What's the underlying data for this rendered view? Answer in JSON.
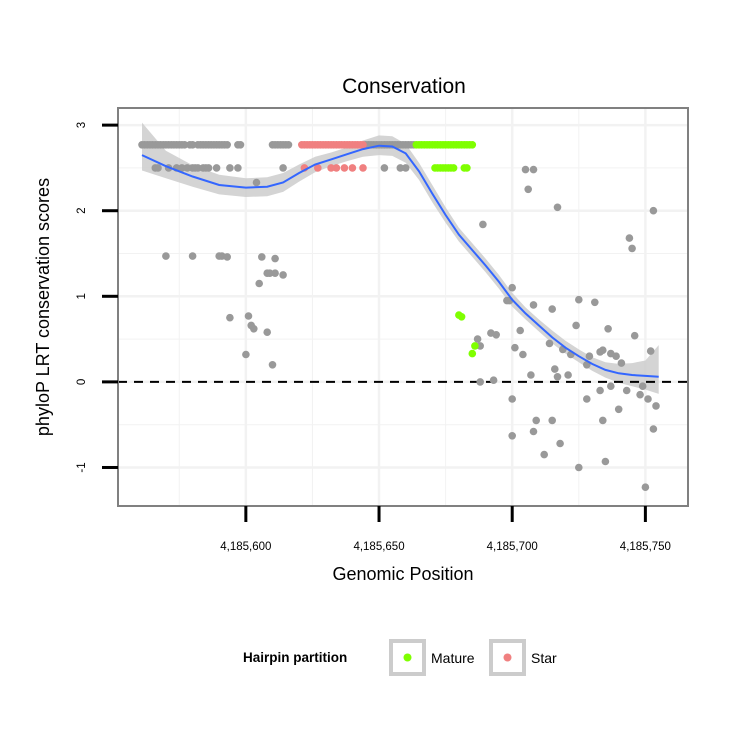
{
  "chart_data": {
    "type": "scatter",
    "title": "Conservation",
    "xlabel": "Genomic Position",
    "ylabel": "phyloP LRT conservation scores",
    "xlim": [
      4185552,
      4185766
    ],
    "ylim": [
      -1.45,
      3.2
    ],
    "x_ticks": [
      {
        "value": 4185600,
        "label": "4,185,600"
      },
      {
        "value": 4185650,
        "label": "4,185,650"
      },
      {
        "value": 4185700,
        "label": "4,185,700"
      },
      {
        "value": 4185750,
        "label": "4,185,750"
      }
    ],
    "y_ticks": [
      {
        "value": -1,
        "label": "-1"
      },
      {
        "value": 0,
        "label": "0"
      },
      {
        "value": 1,
        "label": "1"
      },
      {
        "value": 2,
        "label": "2"
      },
      {
        "value": 3,
        "label": "3"
      }
    ],
    "x_minor_grid": [
      4185575,
      4185625,
      4185675,
      4185725
    ],
    "y_minor_grid": [
      -0.5,
      0.5,
      1.5,
      2.5
    ],
    "reference_line": {
      "y": 0,
      "style": "dashed"
    },
    "colors": {
      "other": "#999999",
      "mature": "#7fff00",
      "star": "#f08080",
      "smooth": "#3366ff",
      "ribbon": "#cccccc",
      "panel_border": "#808080",
      "grid": "#f2f2f2"
    },
    "legend": {
      "title": "Hairpin partition",
      "position": "bottom",
      "entries": [
        {
          "key": "mature",
          "label": "Mature"
        },
        {
          "key": "star",
          "label": "Star"
        }
      ]
    },
    "smooth": {
      "x": [
        4185561,
        4185570,
        4185580,
        4185590,
        4185600,
        4185608,
        4185614,
        4185620,
        4185626,
        4185632,
        4185638,
        4185644,
        4185650,
        4185655,
        4185660,
        4185665,
        4185670,
        4185675,
        4185680,
        4185685,
        4185690,
        4185695,
        4185700,
        4185705,
        4185710,
        4185715,
        4185720,
        4185725,
        4185730,
        4185735,
        4185740,
        4185745,
        4185750,
        4185755
      ],
      "y": [
        2.65,
        2.52,
        2.4,
        2.3,
        2.27,
        2.28,
        2.33,
        2.44,
        2.54,
        2.6,
        2.66,
        2.72,
        2.76,
        2.75,
        2.67,
        2.46,
        2.2,
        1.95,
        1.72,
        1.54,
        1.36,
        1.17,
        0.96,
        0.8,
        0.66,
        0.52,
        0.4,
        0.3,
        0.21,
        0.14,
        0.1,
        0.08,
        0.07,
        0.06
      ],
      "lower": [
        2.47,
        2.38,
        2.28,
        2.19,
        2.16,
        2.17,
        2.22,
        2.34,
        2.45,
        2.52,
        2.58,
        2.63,
        2.65,
        2.64,
        2.56,
        2.36,
        2.1,
        1.86,
        1.64,
        1.46,
        1.28,
        1.09,
        0.88,
        0.73,
        0.59,
        0.45,
        0.33,
        0.23,
        0.13,
        0.05,
        -0.01,
        -0.05,
        -0.09,
        -0.14
      ],
      "upper": [
        3.03,
        2.7,
        2.53,
        2.42,
        2.38,
        2.39,
        2.44,
        2.54,
        2.63,
        2.68,
        2.74,
        2.82,
        2.88,
        2.87,
        2.78,
        2.56,
        2.3,
        2.04,
        1.8,
        1.62,
        1.44,
        1.25,
        1.04,
        0.87,
        0.73,
        0.6,
        0.48,
        0.38,
        0.29,
        0.23,
        0.21,
        0.22,
        0.25,
        0.43
      ]
    },
    "series": [
      {
        "name": "other",
        "points": [
          [
            4185561,
            2.77
          ],
          [
            4185562,
            2.77
          ],
          [
            4185563,
            2.77
          ],
          [
            4185564,
            2.77
          ],
          [
            4185565,
            2.77
          ],
          [
            4185566,
            2.77
          ],
          [
            4185567,
            2.77
          ],
          [
            4185568,
            2.77
          ],
          [
            4185569,
            2.77
          ],
          [
            4185570,
            2.77
          ],
          [
            4185571,
            2.77
          ],
          [
            4185572,
            2.77
          ],
          [
            4185573,
            2.77
          ],
          [
            4185574,
            2.77
          ],
          [
            4185575,
            2.77
          ],
          [
            4185576,
            2.77
          ],
          [
            4185577,
            2.77
          ],
          [
            4185579,
            2.77
          ],
          [
            4185580,
            2.77
          ],
          [
            4185582,
            2.77
          ],
          [
            4185583,
            2.77
          ],
          [
            4185584,
            2.77
          ],
          [
            4185585,
            2.77
          ],
          [
            4185586,
            2.77
          ],
          [
            4185587,
            2.77
          ],
          [
            4185588,
            2.77
          ],
          [
            4185589,
            2.77
          ],
          [
            4185590,
            2.77
          ],
          [
            4185591,
            2.77
          ],
          [
            4185592,
            2.77
          ],
          [
            4185593,
            2.77
          ],
          [
            4185597,
            2.77
          ],
          [
            4185598,
            2.77
          ],
          [
            4185610,
            2.77
          ],
          [
            4185611,
            2.77
          ],
          [
            4185612,
            2.77
          ],
          [
            4185613,
            2.77
          ],
          [
            4185614,
            2.77
          ],
          [
            4185615,
            2.77
          ],
          [
            4185616,
            2.77
          ],
          [
            4185645,
            2.77
          ],
          [
            4185646,
            2.77
          ],
          [
            4185647,
            2.77
          ],
          [
            4185648,
            2.77
          ],
          [
            4185649,
            2.77
          ],
          [
            4185650,
            2.77
          ],
          [
            4185651,
            2.77
          ],
          [
            4185652,
            2.77
          ],
          [
            4185653,
            2.77
          ],
          [
            4185654,
            2.77
          ],
          [
            4185655,
            2.77
          ],
          [
            4185656,
            2.77
          ],
          [
            4185657,
            2.77
          ],
          [
            4185658,
            2.77
          ],
          [
            4185659,
            2.77
          ],
          [
            4185660,
            2.77
          ],
          [
            4185661,
            2.77
          ],
          [
            4185662,
            2.77
          ],
          [
            4185663,
            2.77
          ],
          [
            4185566,
            2.5
          ],
          [
            4185567,
            2.5
          ],
          [
            4185571,
            2.5
          ],
          [
            4185574,
            2.5
          ],
          [
            4185576,
            2.5
          ],
          [
            4185578,
            2.5
          ],
          [
            4185580,
            2.5
          ],
          [
            4185581,
            2.5
          ],
          [
            4185582,
            2.5
          ],
          [
            4185584,
            2.5
          ],
          [
            4185585,
            2.5
          ],
          [
            4185586,
            2.5
          ],
          [
            4185589,
            2.5
          ],
          [
            4185594,
            2.5
          ],
          [
            4185597,
            2.5
          ],
          [
            4185604,
            2.33
          ],
          [
            4185614,
            2.5
          ],
          [
            4185652,
            2.5
          ],
          [
            4185658,
            2.5
          ],
          [
            4185660,
            2.5
          ],
          [
            4185570,
            1.47
          ],
          [
            4185580,
            1.47
          ],
          [
            4185590,
            1.47
          ],
          [
            4185591,
            1.47
          ],
          [
            4185593,
            1.46
          ],
          [
            4185606,
            1.46
          ],
          [
            4185611,
            1.44
          ],
          [
            4185608,
            1.27
          ],
          [
            4185609,
            1.27
          ],
          [
            4185611,
            1.27
          ],
          [
            4185614,
            1.25
          ],
          [
            4185605,
            1.15
          ],
          [
            4185601,
            0.77
          ],
          [
            4185594,
            0.75
          ],
          [
            4185602,
            0.66
          ],
          [
            4185603,
            0.62
          ],
          [
            4185608,
            0.58
          ],
          [
            4185600,
            0.32
          ],
          [
            4185610,
            0.2
          ],
          [
            4185705,
            2.48
          ],
          [
            4185708,
            2.48
          ],
          [
            4185706,
            2.25
          ],
          [
            4185717,
            2.04
          ],
          [
            4185753,
            2.0
          ],
          [
            4185689,
            1.84
          ],
          [
            4185744,
            1.68
          ],
          [
            4185745,
            1.56
          ],
          [
            4185700,
            1.1
          ],
          [
            4185698,
            0.95
          ],
          [
            4185699,
            0.95
          ],
          [
            4185708,
            0.9
          ],
          [
            4185715,
            0.85
          ],
          [
            4185725,
            0.96
          ],
          [
            4185731,
            0.93
          ],
          [
            4185724,
            0.66
          ],
          [
            4185736,
            0.62
          ],
          [
            4185746,
            0.54
          ],
          [
            4185692,
            0.57
          ],
          [
            4185694,
            0.55
          ],
          [
            4185687,
            0.5
          ],
          [
            4185688,
            0.42
          ],
          [
            4185701,
            0.4
          ],
          [
            4185703,
            0.6
          ],
          [
            4185704,
            0.32
          ],
          [
            4185714,
            0.45
          ],
          [
            4185719,
            0.38
          ],
          [
            4185722,
            0.32
          ],
          [
            4185728,
            0.2
          ],
          [
            4185729,
            0.3
          ],
          [
            4185733,
            0.35
          ],
          [
            4185734,
            0.37
          ],
          [
            4185737,
            0.33
          ],
          [
            4185739,
            0.3
          ],
          [
            4185741,
            0.22
          ],
          [
            4185752,
            0.36
          ],
          [
            4185688,
            0.0
          ],
          [
            4185693,
            0.02
          ],
          [
            4185707,
            0.08
          ],
          [
            4185716,
            0.15
          ],
          [
            4185717,
            0.06
          ],
          [
            4185721,
            0.08
          ],
          [
            4185728,
            -0.2
          ],
          [
            4185733,
            -0.1
          ],
          [
            4185737,
            -0.05
          ],
          [
            4185740,
            -0.32
          ],
          [
            4185743,
            -0.1
          ],
          [
            4185748,
            -0.15
          ],
          [
            4185749,
            -0.05
          ],
          [
            4185751,
            -0.2
          ],
          [
            4185754,
            -0.28
          ],
          [
            4185700,
            -0.2
          ],
          [
            4185709,
            -0.45
          ],
          [
            4185715,
            -0.45
          ],
          [
            4185734,
            -0.45
          ],
          [
            4185700,
            -0.63
          ],
          [
            4185708,
            -0.58
          ],
          [
            4185718,
            -0.72
          ],
          [
            4185753,
            -0.55
          ],
          [
            4185712,
            -0.85
          ],
          [
            4185735,
            -0.93
          ],
          [
            4185725,
            -1.0
          ],
          [
            4185750,
            -1.23
          ]
        ]
      },
      {
        "name": "star",
        "points": [
          [
            4185621,
            2.77
          ],
          [
            4185622,
            2.77
          ],
          [
            4185623,
            2.77
          ],
          [
            4185624,
            2.77
          ],
          [
            4185625,
            2.77
          ],
          [
            4185626,
            2.77
          ],
          [
            4185627,
            2.77
          ],
          [
            4185628,
            2.77
          ],
          [
            4185629,
            2.77
          ],
          [
            4185630,
            2.77
          ],
          [
            4185631,
            2.77
          ],
          [
            4185632,
            2.77
          ],
          [
            4185633,
            2.77
          ],
          [
            4185634,
            2.77
          ],
          [
            4185635,
            2.77
          ],
          [
            4185636,
            2.77
          ],
          [
            4185637,
            2.77
          ],
          [
            4185638,
            2.77
          ],
          [
            4185639,
            2.77
          ],
          [
            4185640,
            2.77
          ],
          [
            4185641,
            2.77
          ],
          [
            4185642,
            2.77
          ],
          [
            4185643,
            2.77
          ],
          [
            4185644,
            2.77
          ],
          [
            4185622,
            2.5
          ],
          [
            4185627,
            2.5
          ],
          [
            4185632,
            2.5
          ],
          [
            4185634,
            2.5
          ],
          [
            4185637,
            2.5
          ],
          [
            4185640,
            2.5
          ],
          [
            4185644,
            2.5
          ]
        ]
      },
      {
        "name": "mature",
        "points": [
          [
            4185664,
            2.77
          ],
          [
            4185665,
            2.77
          ],
          [
            4185666,
            2.77
          ],
          [
            4185667,
            2.77
          ],
          [
            4185668,
            2.77
          ],
          [
            4185669,
            2.77
          ],
          [
            4185670,
            2.77
          ],
          [
            4185671,
            2.77
          ],
          [
            4185672,
            2.77
          ],
          [
            4185673,
            2.77
          ],
          [
            4185674,
            2.77
          ],
          [
            4185675,
            2.77
          ],
          [
            4185676,
            2.77
          ],
          [
            4185677,
            2.77
          ],
          [
            4185678,
            2.77
          ],
          [
            4185679,
            2.77
          ],
          [
            4185680,
            2.77
          ],
          [
            4185681,
            2.77
          ],
          [
            4185682,
            2.77
          ],
          [
            4185683,
            2.77
          ],
          [
            4185684,
            2.77
          ],
          [
            4185685,
            2.77
          ],
          [
            4185671,
            2.5
          ],
          [
            4185672,
            2.5
          ],
          [
            4185673,
            2.5
          ],
          [
            4185674,
            2.5
          ],
          [
            4185675,
            2.5
          ],
          [
            4185676,
            2.5
          ],
          [
            4185677,
            2.5
          ],
          [
            4185678,
            2.5
          ],
          [
            4185682,
            2.5
          ],
          [
            4185683,
            2.5
          ],
          [
            4185680,
            0.78
          ],
          [
            4185681,
            0.76
          ],
          [
            4185686,
            0.42
          ],
          [
            4185685,
            0.33
          ]
        ]
      }
    ]
  }
}
